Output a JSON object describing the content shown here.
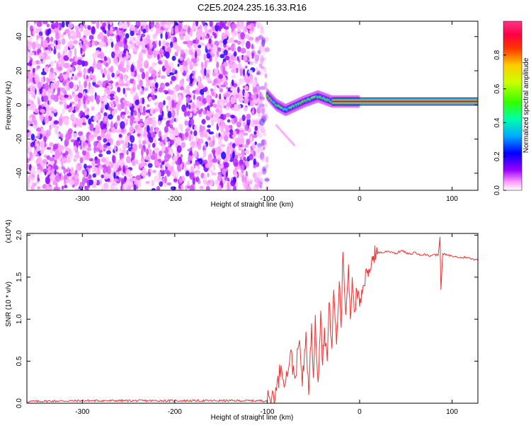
{
  "title": "C2E5.2024.235.16.33.R16",
  "chart_data": [
    {
      "type": "heatmap",
      "title": "C2E5.2024.235.16.33.R16",
      "xlabel": "Height of straight line (km)",
      "ylabel": "Frequency (Hz)",
      "xlim": [
        -360,
        128
      ],
      "ylim": [
        -50,
        49
      ],
      "x_ticks": [
        -300,
        -200,
        -100,
        0,
        100
      ],
      "y_ticks": [
        -40,
        -20,
        0,
        20,
        40
      ],
      "x_tick_labels": [
        "-300",
        "-200",
        "-100",
        "0",
        "100"
      ],
      "y_tick_labels": [
        "-40",
        "-20",
        "0",
        "20",
        "40"
      ],
      "colorbar": {
        "label": "Normalized spectral amplitude",
        "range": [
          0,
          1
        ],
        "ticks": [
          0.0,
          0.2,
          0.4,
          0.6,
          0.8
        ],
        "tick_labels": [
          "0.0",
          "0.2",
          "0.4",
          "0.6",
          "0.8"
        ],
        "colors": [
          "#ffffff",
          "#ff66ff",
          "#8800ff",
          "#0000ff",
          "#00ccff",
          "#00ff88",
          "#66ff00",
          "#ffff00",
          "#ff8800",
          "#ff0000",
          "#ff4488"
        ]
      },
      "regions": [
        {
          "x_range": [
            -360,
            -100
          ],
          "freq_range": [
            -50,
            49
          ],
          "amplitude": 0.2
        },
        {
          "x_range": [
            -100,
            0
          ],
          "freq_center_points": [
            [
              -100,
              6
            ],
            [
              -90,
              0
            ],
            [
              -80,
              -3
            ],
            [
              -60,
              2
            ],
            [
              -45,
              5
            ],
            [
              -30,
              2
            ],
            [
              -15,
              2
            ],
            [
              0,
              2
            ]
          ],
          "amplitude": 0.5
        },
        {
          "x_range": [
            -30,
            128
          ],
          "freq_center": 2,
          "amplitude": 0.9
        }
      ],
      "grid": false
    },
    {
      "type": "line",
      "xlabel": "Height of straight line (km)",
      "ylabel": "SNR (10 * v/v)",
      "y_multiplier": "(x10^4)",
      "xlim": [
        -360,
        128
      ],
      "ylim": [
        0,
        20200
      ],
      "x_ticks": [
        -300,
        -200,
        -100,
        0,
        100
      ],
      "x_tick_labels": [
        "-300",
        "-200",
        "-100",
        "0",
        "100"
      ],
      "y_ticks": [
        0,
        5000,
        10000,
        15000,
        20000
      ],
      "y_tick_labels": [
        "0.0",
        "0.5",
        "1.0",
        "1.5",
        "2.0"
      ],
      "series": [
        {
          "color": "#ee3333",
          "x": [
            -360,
            -340,
            -300,
            -250,
            -200,
            -150,
            -110,
            -100,
            -95,
            -90,
            -85,
            -80,
            -75,
            -70,
            -65,
            -62,
            -58,
            -55,
            -52,
            -50,
            -48,
            -45,
            -42,
            -40,
            -38,
            -35,
            -33,
            -30,
            -28,
            -25,
            -22,
            -20,
            -18,
            -15,
            -12,
            -10,
            -8,
            -5,
            -3,
            0,
            3,
            5,
            8,
            10,
            13,
            15,
            18,
            20,
            25,
            30,
            35,
            40,
            45,
            50,
            55,
            60,
            65,
            70,
            75,
            80,
            85,
            87,
            88,
            90,
            95,
            100,
            105,
            110,
            115,
            120,
            125,
            128
          ],
          "y": [
            200,
            250,
            300,
            300,
            300,
            300,
            300,
            300,
            800,
            1500,
            4500,
            2500,
            6000,
            3000,
            7500,
            2000,
            8500,
            1000,
            9500,
            3000,
            10500,
            2500,
            11000,
            4500,
            9000,
            5000,
            12000,
            6500,
            13500,
            7000,
            14500,
            9000,
            18000,
            10500,
            16500,
            10000,
            15000,
            11000,
            13500,
            11500,
            13000,
            14000,
            15500,
            16000,
            17000,
            17500,
            17800,
            18000,
            17900,
            18100,
            18000,
            17800,
            18200,
            17900,
            17700,
            18000,
            17600,
            17800,
            17500,
            17700,
            17600,
            19800,
            13500,
            17800,
            17600,
            17500,
            17400,
            17300,
            17400,
            17200,
            17100,
            17200
          ]
        }
      ],
      "grid": false
    }
  ]
}
